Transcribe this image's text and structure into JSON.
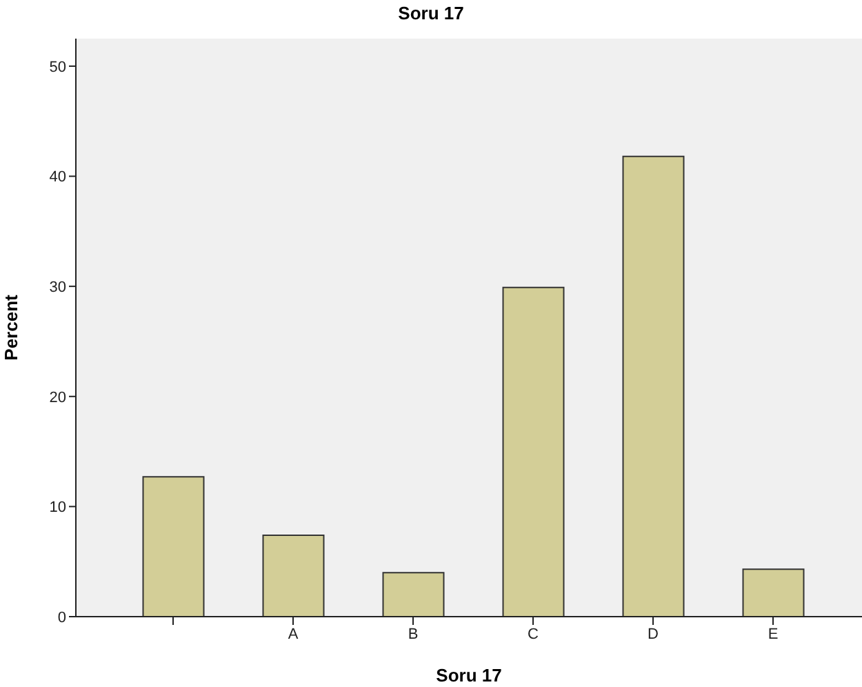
{
  "chart_data": {
    "type": "bar",
    "title": "Soru 17",
    "xlabel": "Soru 17",
    "ylabel": "Percent",
    "categories": [
      null,
      "A",
      "B",
      "C",
      "D",
      "E"
    ],
    "values": [
      12.7,
      7.4,
      4.0,
      29.9,
      41.8,
      4.3
    ],
    "color": "#d3ce97",
    "ylim": [
      0,
      52.5
    ],
    "yticks": [
      0,
      10,
      20,
      30,
      40,
      50
    ],
    "grid": false,
    "legend": false
  }
}
